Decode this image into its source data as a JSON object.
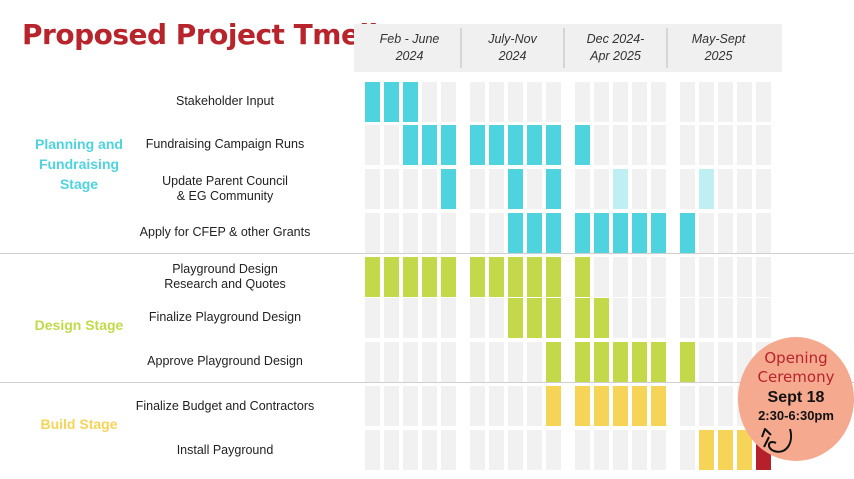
{
  "title": "Proposed Project Tmeline",
  "colors": {
    "title": "#b8242c",
    "planning": "#4fd3de",
    "planning_light": "#bfeff2",
    "design": "#c3d94a",
    "build": "#f6d458",
    "ceremony": "#b5202a",
    "empty_cell": "#f1f1f1",
    "badge": "#f5a98f"
  },
  "periods": [
    {
      "line1": "Feb - June",
      "line2": "2024"
    },
    {
      "line1": "July-Nov",
      "line2": "2024"
    },
    {
      "line1": "Dec 2024-",
      "line2": "Apr 2025"
    },
    {
      "line1": "May-Sept",
      "line2": "2025"
    }
  ],
  "stages": [
    {
      "line1": "Planning and",
      "line2": "Fundraising",
      "line3": "Stage"
    },
    {
      "line1": "Design Stage"
    },
    {
      "line1": "Build Stage"
    }
  ],
  "badge": {
    "line1": "Opening",
    "line2": "Ceremony",
    "date": "Sept 18",
    "time": "2:30-6:30pm"
  },
  "chart_data": {
    "type": "gantt",
    "title": "Proposed Project Tmeline",
    "columns": [
      "Feb 2024",
      "Mar 2024",
      "Apr 2024",
      "May 2024",
      "Jun 2024",
      "Jul 2024",
      "Aug 2024",
      "Sep 2024",
      "Oct 2024",
      "Nov 2024",
      "Dec 2024",
      "Jan 2025",
      "Feb 2025",
      "Mar 2025",
      "Apr 2025",
      "May 2025",
      "Jun 2025",
      "Jul 2025",
      "Aug 2025",
      "Sep 2025"
    ],
    "tasks": [
      {
        "line1": "Stakeholder Input",
        "line2": "",
        "stage": "planning",
        "months": [
          0,
          1,
          2
        ]
      },
      {
        "line1": "Fundraising Campaign Runs",
        "line2": "",
        "stage": "planning",
        "months": [
          2,
          3,
          4,
          5,
          6,
          7,
          8,
          9,
          10
        ]
      },
      {
        "line1": "Update Parent Council",
        "line2": "& EG Community",
        "stage": "planning",
        "months": [
          4,
          7,
          9
        ],
        "light_months": [
          12,
          16
        ]
      },
      {
        "line1": "Apply for CFEP & other Grants",
        "line2": "",
        "stage": "planning",
        "months": [
          7,
          8,
          9,
          10,
          11,
          12,
          13,
          14,
          15
        ]
      },
      {
        "line1": "Playground Design",
        "line2": "Research and Quotes",
        "stage": "design",
        "months": [
          0,
          1,
          2,
          3,
          4,
          5,
          6,
          7,
          8,
          9,
          10
        ]
      },
      {
        "line1": "Finalize Playground Design",
        "line2": "",
        "stage": "design",
        "months": [
          7,
          8,
          9,
          10,
          11
        ]
      },
      {
        "line1": "Approve Playground Design",
        "line2": "",
        "stage": "design",
        "months": [
          9,
          10,
          11,
          12,
          13,
          14,
          15
        ]
      },
      {
        "line1": "Finalize Budget and Contractors",
        "line2": "",
        "stage": "build",
        "months": [
          9,
          10,
          11,
          12,
          13,
          14
        ]
      },
      {
        "line1": "Install Payground",
        "line2": "",
        "stage": "build",
        "months": [
          16,
          17,
          18
        ],
        "ceremony_months": [
          19
        ]
      }
    ]
  }
}
